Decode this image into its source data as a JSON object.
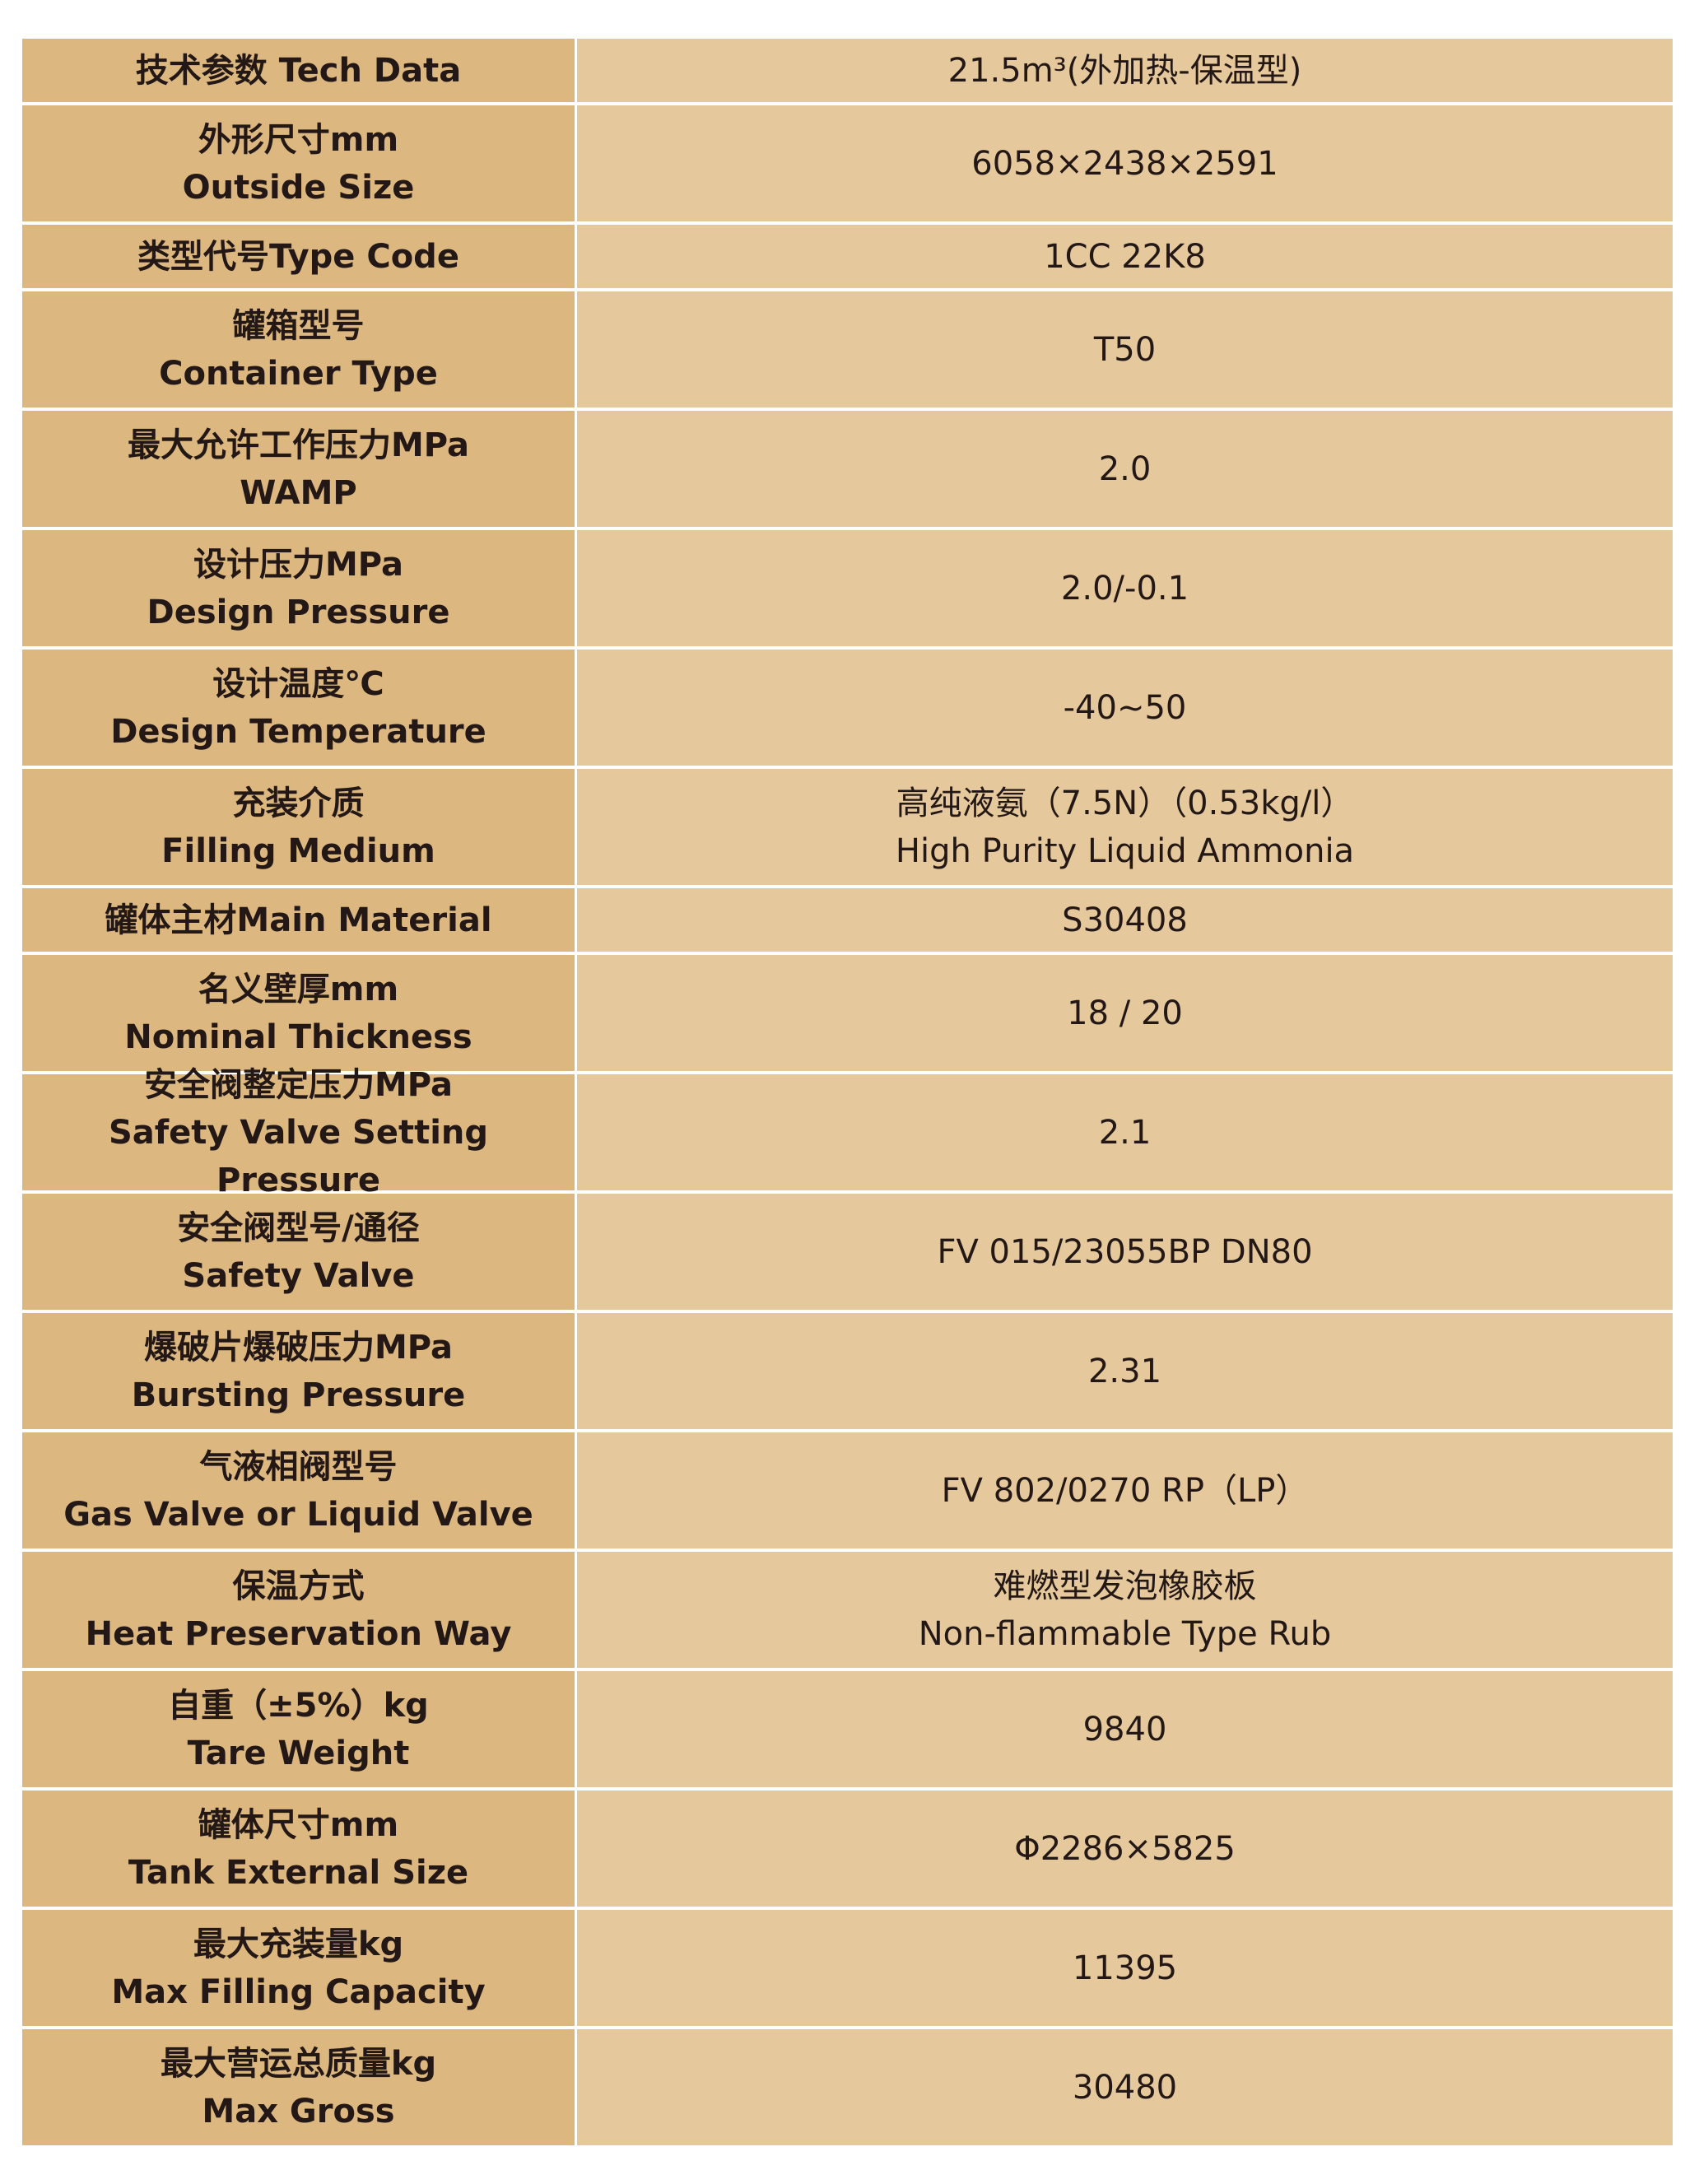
{
  "rows": [
    {
      "label_cn": "技术参数 Tech Data",
      "label_en": "",
      "value": "21.5m³(外加热-保温型)",
      "value2": ""
    },
    {
      "label_cn": "外形尺寸mm",
      "label_en": "Outside Size",
      "value": "6058×2438×2591",
      "value2": ""
    },
    {
      "label_cn": "类型代号Type Code",
      "label_en": "",
      "value": "1CC 22K8",
      "value2": ""
    },
    {
      "label_cn": "罐箱型号",
      "label_en": "Container Type",
      "value": "T50",
      "value2": ""
    },
    {
      "label_cn": "最大允许工作压力MPa",
      "label_en": "WAMP",
      "value": "2.0",
      "value2": ""
    },
    {
      "label_cn": "设计压力MPa",
      "label_en": "Design Pressure",
      "value": "2.0/-0.1",
      "value2": ""
    },
    {
      "label_cn": "设计温度℃",
      "label_en": "Design Temperature",
      "value": "-40~50",
      "value2": ""
    },
    {
      "label_cn": "充装介质",
      "label_en": "Filling Medium",
      "value": "高纯液氨（7.5N）（0.53kg/l）",
      "value2": "High Purity Liquid  Ammonia"
    },
    {
      "label_cn": "罐体主材Main Material",
      "label_en": "",
      "value": "S30408",
      "value2": ""
    },
    {
      "label_cn": "名义壁厚mm",
      "label_en": "Nominal Thickness",
      "value": "18 / 20",
      "value2": ""
    },
    {
      "label_cn": "安全阀整定压力MPa",
      "label_en": "Safety Valve Setting Pressure",
      "value": "2.1",
      "value2": ""
    },
    {
      "label_cn": "安全阀型号/通径",
      "label_en": "Safety Valve",
      "value": "FV 015/23055BP DN80",
      "value2": ""
    },
    {
      "label_cn": "爆破片爆破压力MPa",
      "label_en": "Bursting Pressure",
      "value": "2.31",
      "value2": ""
    },
    {
      "label_cn": "气液相阀型号",
      "label_en": "Gas Valve or Liquid Valve",
      "value": "FV 802/0270 RP（LP）",
      "value2": ""
    },
    {
      "label_cn": "保温方式",
      "label_en": "Heat Preservation Way",
      "value": "难燃型发泡橡胶板",
      "value2": "Non-flammable Type Rub"
    },
    {
      "label_cn": "自重（±5%）kg",
      "label_en": "Tare Weight",
      "value": "9840",
      "value2": ""
    },
    {
      "label_cn": "罐体尺寸mm",
      "label_en": "Tank External Size",
      "value": "Φ2286×5825",
      "value2": ""
    },
    {
      "label_cn": "最大充装量kg",
      "label_en": "Max Filling Capacity",
      "value": "11395",
      "value2": ""
    },
    {
      "label_cn": "最大营运总质量kg",
      "label_en": "Max Gross",
      "value": "30480",
      "value2": ""
    }
  ],
  "colors": {
    "label_bg": "#dcb880",
    "value_bg": "#e5c89c",
    "text": "#231815"
  }
}
